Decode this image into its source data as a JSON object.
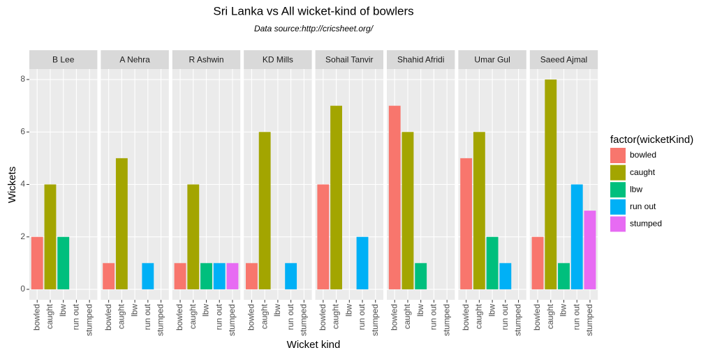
{
  "chart_data": {
    "type": "bar",
    "title": "Sri Lanka vs All wicket-kind of bowlers",
    "subtitle": "Data source:http://cricsheet.org/",
    "x_label": "Wicket kind",
    "y_label": "Wickets",
    "legend_title": "factor(wicketKind)",
    "categories": [
      "bowled",
      "caught",
      "lbw",
      "run out",
      "stumped"
    ],
    "colors": [
      "#F8766D",
      "#A3A500",
      "#00BF7D",
      "#00B0F6",
      "#E76BF3"
    ],
    "ylim": [
      -0.4,
      8.4
    ],
    "yticks": [
      0,
      2,
      4,
      6,
      8
    ],
    "grid": true,
    "facets": [
      {
        "name": "B Lee",
        "values": [
          2,
          4,
          2,
          null,
          null
        ]
      },
      {
        "name": "A Nehra",
        "values": [
          1,
          5,
          null,
          1,
          null
        ]
      },
      {
        "name": "R Ashwin",
        "values": [
          1,
          4,
          1,
          1,
          1
        ]
      },
      {
        "name": "KD Mills",
        "values": [
          1,
          6,
          null,
          1,
          null
        ]
      },
      {
        "name": "Sohail Tanvir",
        "values": [
          4,
          7,
          null,
          2,
          null
        ]
      },
      {
        "name": "Shahid Afridi",
        "values": [
          7,
          6,
          1,
          null,
          null
        ]
      },
      {
        "name": "Umar Gul",
        "values": [
          5,
          6,
          2,
          1,
          null
        ]
      },
      {
        "name": "Saeed Ajmal",
        "values": [
          2,
          8,
          1,
          4,
          3
        ]
      }
    ]
  }
}
